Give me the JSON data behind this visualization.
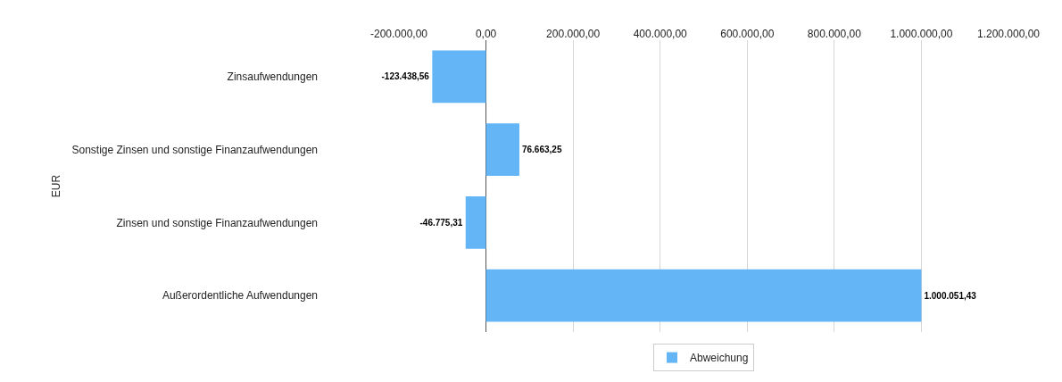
{
  "chart_data": {
    "type": "bar",
    "orientation": "horizontal",
    "ylabel": "EUR",
    "categories": [
      "Zinsaufwendungen",
      "Sonstige Zinsen und sonstige Finanzaufwendungen",
      "Zinsen und sonstige Finanzaufwendungen",
      "Außerordentliche Aufwendungen"
    ],
    "series": [
      {
        "name": "Abweichung",
        "color": "#64b5f6",
        "values": [
          -123438.56,
          76663.25,
          -46775.31,
          1000051.43
        ],
        "value_labels": [
          "-123.438,56",
          "76.663,25",
          "-46.775,31",
          "1.000.051,43"
        ]
      }
    ],
    "xlim": [
      -200000,
      1200000
    ],
    "xticks": [
      {
        "value": -200000,
        "label": "-200.000,00"
      },
      {
        "value": 0,
        "label": "0,00"
      },
      {
        "value": 200000,
        "label": "200.000,00"
      },
      {
        "value": 400000,
        "label": "400.000,00"
      },
      {
        "value": 600000,
        "label": "600.000,00"
      },
      {
        "value": 800000,
        "label": "800.000,00"
      },
      {
        "value": 1000000,
        "label": "1.000.000,00"
      },
      {
        "value": 1200000,
        "label": "1.200.000,00"
      }
    ],
    "grid": "x",
    "legend": "bottom"
  }
}
